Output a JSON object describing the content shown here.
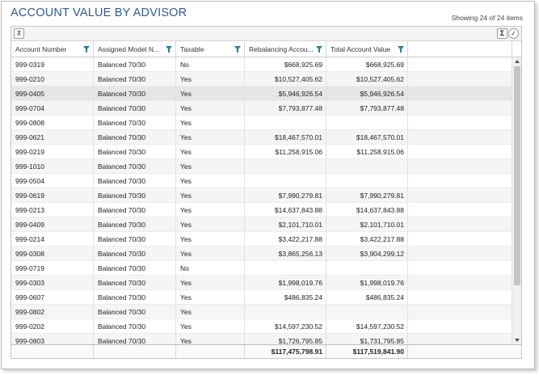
{
  "page": {
    "title": "ACCOUNT VALUE BY ADVISOR",
    "item_count": "Showing 24 of 24 items"
  },
  "colors": {
    "title": "#2c5a9a",
    "filter_icon": "#2a7f9f",
    "selected_row": "#e6e6e6"
  },
  "toolbar": {
    "collapse_icon": "collapse-all-icon",
    "sum_icon": "sigma-icon",
    "sum_glyph": "Σ",
    "check_icon": "check-circle-icon",
    "check_glyph": "✓",
    "collapse_glyph": "⊼"
  },
  "columns": [
    {
      "label": "Account Number"
    },
    {
      "label": "Assigned Model N..."
    },
    {
      "label": "Taxable"
    },
    {
      "label": "Rebalancing Accou..."
    },
    {
      "label": "Total Account Value"
    }
  ],
  "rows": [
    {
      "account": "999-0319",
      "model": "Balanced 70/30",
      "taxable": "No",
      "rebalancing": "$668,925.69",
      "total": "$668,925.69"
    },
    {
      "account": "999-0210",
      "model": "Balanced 70/30",
      "taxable": "Yes",
      "rebalancing": "$10,527,405.62",
      "total": "$10,527,405.62"
    },
    {
      "account": "999-0405",
      "model": "Balanced 70/30",
      "taxable": "Yes",
      "rebalancing": "$5,946,926.54",
      "total": "$5,946,926.54"
    },
    {
      "account": "999-0704",
      "model": "Balanced 70/30",
      "taxable": "Yes",
      "rebalancing": "$7,793,877.48",
      "total": "$7,793,877.48"
    },
    {
      "account": "999-0808",
      "model": "Balanced 70/30",
      "taxable": "Yes",
      "rebalancing": "",
      "total": ""
    },
    {
      "account": "999-0621",
      "model": "Balanced 70/30",
      "taxable": "Yes",
      "rebalancing": "$18,467,570.01",
      "total": "$18,467,570.01"
    },
    {
      "account": "999-0219",
      "model": "Balanced 70/30",
      "taxable": "Yes",
      "rebalancing": "$11,258,915.06",
      "total": "$11,258,915.06"
    },
    {
      "account": "999-1010",
      "model": "Balanced 70/30",
      "taxable": "Yes",
      "rebalancing": "",
      "total": ""
    },
    {
      "account": "999-0504",
      "model": "Balanced 70/30",
      "taxable": "Yes",
      "rebalancing": "",
      "total": ""
    },
    {
      "account": "999-0619",
      "model": "Balanced 70/30",
      "taxable": "Yes",
      "rebalancing": "$7,990,279.81",
      "total": "$7,990,279.81"
    },
    {
      "account": "999-0213",
      "model": "Balanced 70/30",
      "taxable": "Yes",
      "rebalancing": "$14,637,843.88",
      "total": "$14,637,843.88"
    },
    {
      "account": "999-0409",
      "model": "Balanced 70/30",
      "taxable": "Yes",
      "rebalancing": "$2,101,710.01",
      "total": "$2,101,710.01"
    },
    {
      "account": "999-0214",
      "model": "Balanced 70/30",
      "taxable": "Yes",
      "rebalancing": "$3,422,217.88",
      "total": "$3,422,217.88"
    },
    {
      "account": "999-0308",
      "model": "Balanced 70/30",
      "taxable": "Yes",
      "rebalancing": "$3,865,256.13",
      "total": "$3,904,299.12"
    },
    {
      "account": "999-0719",
      "model": "Balanced 70/30",
      "taxable": "No",
      "rebalancing": "",
      "total": ""
    },
    {
      "account": "999-0303",
      "model": "Balanced 70/30",
      "taxable": "Yes",
      "rebalancing": "$1,998,019.76",
      "total": "$1,998,019.76"
    },
    {
      "account": "999-0607",
      "model": "Balanced 70/30",
      "taxable": "Yes",
      "rebalancing": "$486,835.24",
      "total": "$486,835.24"
    },
    {
      "account": "999-0802",
      "model": "Balanced 70/30",
      "taxable": "Yes",
      "rebalancing": "",
      "total": ""
    },
    {
      "account": "999-0202",
      "model": "Balanced 70/30",
      "taxable": "Yes",
      "rebalancing": "$14,597,230.52",
      "total": "$14,597,230.52"
    },
    {
      "account": "999-0803",
      "model": "Balanced 70/30",
      "taxable": "Yes",
      "rebalancing": "$1,726,795.85",
      "total": "$1,731,795.85"
    }
  ],
  "selected_row": 2,
  "totals": {
    "rebalancing": "$117,475,798.91",
    "total": "$117,519,841.90"
  }
}
